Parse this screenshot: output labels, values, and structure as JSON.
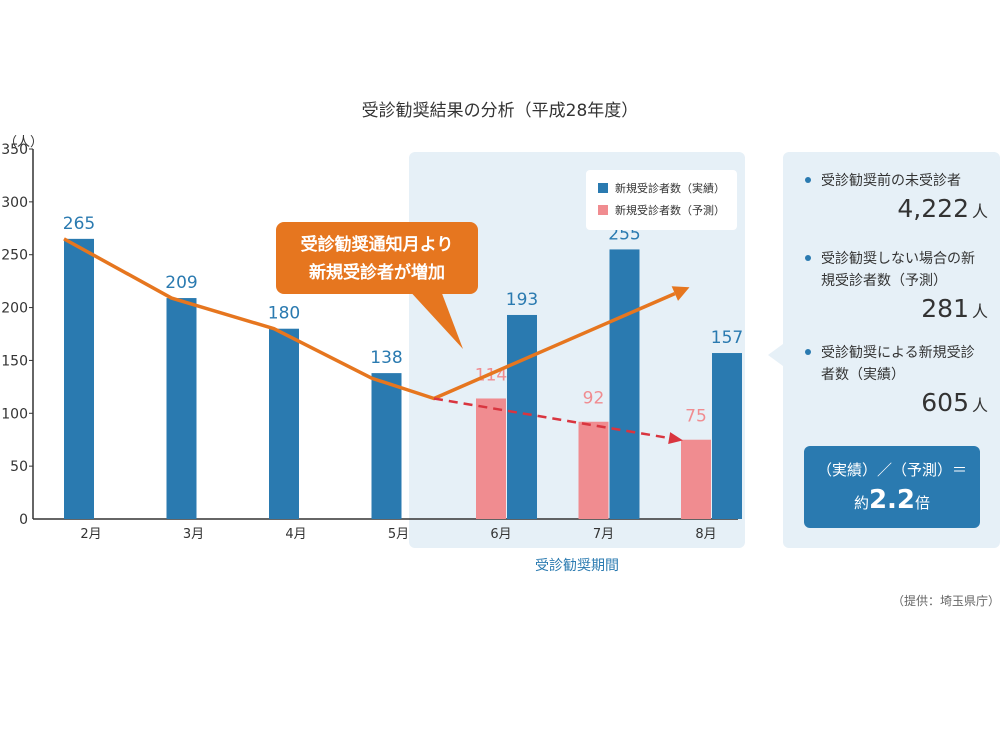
{
  "title": "受診勧奨結果の分析（平成28年度）",
  "colors": {
    "actual": "#2a7ab0",
    "forecast": "#f08c90",
    "trend": "#e6761f",
    "forecast_line": "#d9353f",
    "highlight_bg": "#e6f0f7"
  },
  "chart_data": {
    "type": "bar",
    "y_unit_label": "（人）",
    "ylim": [
      0,
      350
    ],
    "yticks": [
      0,
      50,
      100,
      150,
      200,
      250,
      300,
      350
    ],
    "categories": [
      "2月",
      "3月",
      "4月",
      "5月",
      "6月",
      "7月",
      "8月"
    ],
    "series": [
      {
        "name": "新規受診者数（実績）",
        "values": [
          265,
          209,
          180,
          138,
          193,
          255,
          157
        ]
      },
      {
        "name": "新規受診者数（予測）",
        "values": [
          null,
          null,
          null,
          null,
          114,
          92,
          75
        ]
      }
    ],
    "highlight_period_label": "受診勧奨期間",
    "highlight_categories": [
      "6月",
      "7月",
      "8月"
    ],
    "callout": [
      "受診勧奨通知月より",
      "新規受診者が増加"
    ],
    "legend_position": "top-right of highlighted period"
  },
  "summary": {
    "items": [
      {
        "label": "受診勧奨前の未受診者",
        "value": "4,222",
        "unit": "人"
      },
      {
        "label": "受診勧奨しない場合の新規受診者数（予測）",
        "value": "281",
        "unit": "人"
      },
      {
        "label": "受診勧奨による新規受診者数（実績）",
        "value": "605",
        "unit": "人"
      }
    ],
    "ratio_line1": "（実績）／（予測）＝",
    "ratio_prefix": "約",
    "ratio_value": "2.2",
    "ratio_suffix": "倍"
  },
  "source": "（提供：埼玉県庁）"
}
